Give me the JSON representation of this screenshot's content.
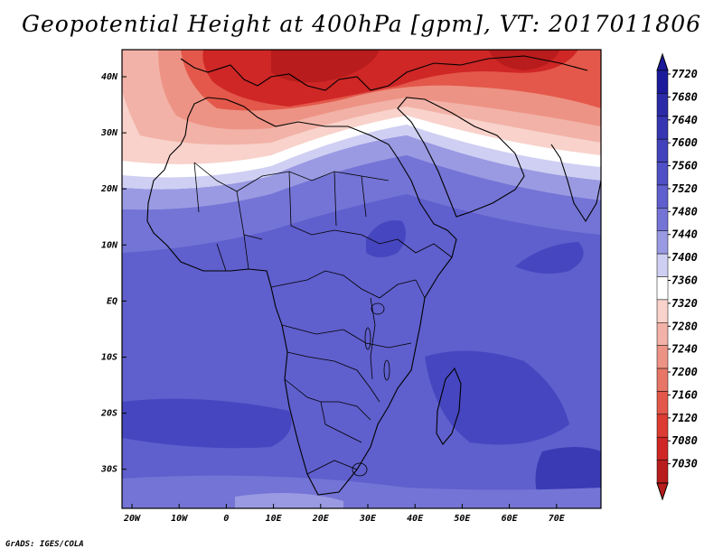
{
  "title": "Geopotential Height at 400hPa [gpm], VT: 2017011806",
  "credit": "GrADS: IGES/COLA",
  "lon_labels": [
    "20W",
    "10W",
    "0",
    "10E",
    "20E",
    "30E",
    "40E",
    "50E",
    "60E",
    "70E"
  ],
  "lat_labels": [
    "40N",
    "30N",
    "20N",
    "10N",
    "EQ",
    "10S",
    "20S",
    "30S"
  ],
  "colorbar": {
    "labels": [
      "7720",
      "7680",
      "7640",
      "7600",
      "7560",
      "7520",
      "7480",
      "7440",
      "7400",
      "7360",
      "7320",
      "7280",
      "7240",
      "7200",
      "7160",
      "7120",
      "7080",
      "7030"
    ],
    "colors": [
      "#1a1a9a",
      "#2b2ba8",
      "#3636b3",
      "#4242bd",
      "#4f4fc6",
      "#5f5fcd",
      "#7474d6",
      "#9a9ae3",
      "#cfcff3",
      "#ffffff",
      "#f8d2cb",
      "#f2b2a7",
      "#ed9385",
      "#e87666",
      "#e3584a",
      "#dd3c33",
      "#cf2626",
      "#b81c1c"
    ]
  },
  "map_colors": {
    "ocean_main": "#5f5fcd",
    "band_deep": "#4646c0",
    "band_mid": "#7474d6",
    "band_light": "#9a9ae3",
    "band_pale": "#cfcff3",
    "band_white": "#ffffff",
    "band_pink1": "#f8d2cb",
    "band_pink2": "#f2b2a7",
    "band_red1": "#ed9385",
    "band_red2": "#e3584a",
    "band_red3": "#cf2626",
    "land_outline": "#000000"
  }
}
